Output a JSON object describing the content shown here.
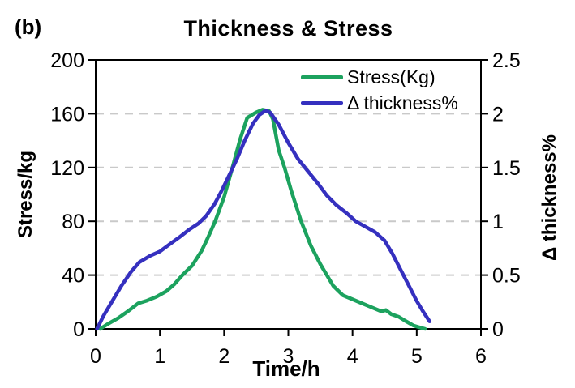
{
  "figure_label": "(b)",
  "title": "Thickness & Stress",
  "colors": {
    "stress_line": "#1CA25E",
    "thickness_line": "#3530BF",
    "gridline": "#C9C9C9",
    "axis": "#000000",
    "text": "#000000",
    "background": "#FFFFFF"
  },
  "legend": {
    "items": [
      {
        "label": "Stress(Kg)",
        "color": "#1CA25E"
      },
      {
        "label": "Δ thickness%",
        "color": "#3530BF"
      }
    ]
  },
  "chart_data": {
    "type": "line",
    "title": "Thickness & Stress",
    "xlabel": "Time/h",
    "ylabel_left": "Stress/kg",
    "ylabel_right": "Δ thickness%",
    "xlim": [
      0,
      6
    ],
    "x_ticks": [
      "0",
      "1",
      "2",
      "3",
      "4",
      "5",
      "6"
    ],
    "left_lim": [
      0,
      200
    ],
    "left_ticks": [
      "0",
      "40",
      "80",
      "120",
      "160",
      "200"
    ],
    "right_lim": [
      0,
      2.5
    ],
    "right_ticks": [
      "0",
      "0.5",
      "1",
      "1.5",
      "2",
      "2.5"
    ],
    "grid": "dashed horizontal gridlines at every 40 kg / 0.5 %",
    "legend_position": "top-right inside plot",
    "series": [
      {
        "name": "Stress(Kg)",
        "axis": "left",
        "color": "#1CA25E",
        "points": [
          [
            0.07,
            0
          ],
          [
            0.2,
            4
          ],
          [
            0.35,
            8
          ],
          [
            0.5,
            13
          ],
          [
            0.66,
            19
          ],
          [
            0.8,
            21
          ],
          [
            0.95,
            24
          ],
          [
            1.1,
            28
          ],
          [
            1.22,
            33
          ],
          [
            1.35,
            40
          ],
          [
            1.5,
            47
          ],
          [
            1.65,
            58
          ],
          [
            1.75,
            68
          ],
          [
            1.86,
            80
          ],
          [
            2.0,
            98
          ],
          [
            2.13,
            120
          ],
          [
            2.25,
            141
          ],
          [
            2.36,
            157
          ],
          [
            2.5,
            161
          ],
          [
            2.6,
            163
          ],
          [
            2.7,
            162
          ],
          [
            2.76,
            156
          ],
          [
            2.85,
            133
          ],
          [
            2.94,
            120
          ],
          [
            3.05,
            102
          ],
          [
            3.2,
            80
          ],
          [
            3.35,
            62
          ],
          [
            3.5,
            48
          ],
          [
            3.6,
            40
          ],
          [
            3.7,
            32
          ],
          [
            3.85,
            25
          ],
          [
            4.0,
            22
          ],
          [
            4.15,
            19
          ],
          [
            4.3,
            16
          ],
          [
            4.45,
            13
          ],
          [
            4.52,
            14
          ],
          [
            4.6,
            11
          ],
          [
            4.72,
            9
          ],
          [
            4.82,
            6
          ],
          [
            4.95,
            2.5
          ],
          [
            5.05,
            1
          ],
          [
            5.13,
            0
          ]
        ]
      },
      {
        "name": "Δ thickness%",
        "axis": "right",
        "color": "#3530BF",
        "points": [
          [
            0.02,
            0
          ],
          [
            0.12,
            0.12
          ],
          [
            0.25,
            0.25
          ],
          [
            0.4,
            0.4
          ],
          [
            0.55,
            0.53
          ],
          [
            0.68,
            0.62
          ],
          [
            0.85,
            0.68
          ],
          [
            1.0,
            0.72
          ],
          [
            1.16,
            0.79
          ],
          [
            1.3,
            0.85
          ],
          [
            1.45,
            0.92
          ],
          [
            1.6,
            0.98
          ],
          [
            1.72,
            1.05
          ],
          [
            1.85,
            1.16
          ],
          [
            1.95,
            1.27
          ],
          [
            2.08,
            1.43
          ],
          [
            2.2,
            1.58
          ],
          [
            2.32,
            1.75
          ],
          [
            2.45,
            1.91
          ],
          [
            2.55,
            1.99
          ],
          [
            2.65,
            2.03
          ],
          [
            2.72,
            2.01
          ],
          [
            2.85,
            1.9
          ],
          [
            3.0,
            1.73
          ],
          [
            3.15,
            1.58
          ],
          [
            3.3,
            1.47
          ],
          [
            3.45,
            1.36
          ],
          [
            3.6,
            1.24
          ],
          [
            3.75,
            1.15
          ],
          [
            3.9,
            1.08
          ],
          [
            4.05,
            1.0
          ],
          [
            4.2,
            0.95
          ],
          [
            4.35,
            0.9
          ],
          [
            4.5,
            0.82
          ],
          [
            4.62,
            0.7
          ],
          [
            4.75,
            0.55
          ],
          [
            4.88,
            0.4
          ],
          [
            5.0,
            0.26
          ],
          [
            5.1,
            0.16
          ],
          [
            5.2,
            0.07
          ]
        ]
      }
    ]
  }
}
